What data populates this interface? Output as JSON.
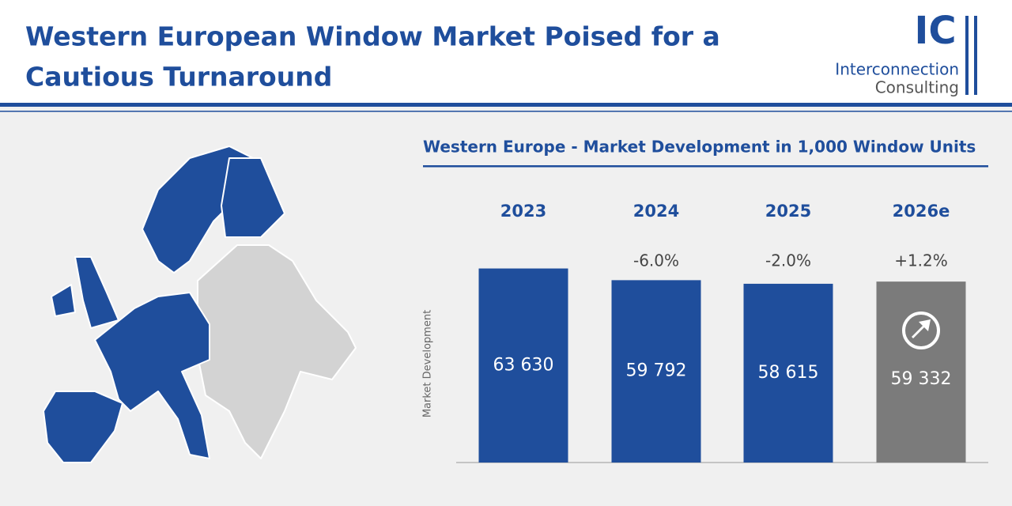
{
  "header": {
    "title_lines": [
      "Western European Window Market Poised for a",
      "Cautious Turnaround"
    ],
    "logo": {
      "mark": "IC",
      "line1": "Interconnection",
      "line2": "Consulting"
    }
  },
  "chart_data": {
    "type": "bar",
    "title": "Western Europe - Market Development in 1,000 Window Units",
    "y_label": "Market Development",
    "categories": [
      "2023",
      "2024",
      "2025",
      "2026e"
    ],
    "values": [
      63630,
      59792,
      58615,
      59332
    ],
    "value_labels": [
      "63 630",
      "59 792",
      "58 615",
      "59 332"
    ],
    "changes": [
      null,
      "-6.0%",
      "-2.0%",
      "+1.2%"
    ],
    "colors": [
      "#1f4e9c",
      "#1f4e9c",
      "#1f4e9c",
      "#7b7b7b"
    ],
    "ylim": [
      0,
      70000
    ]
  }
}
